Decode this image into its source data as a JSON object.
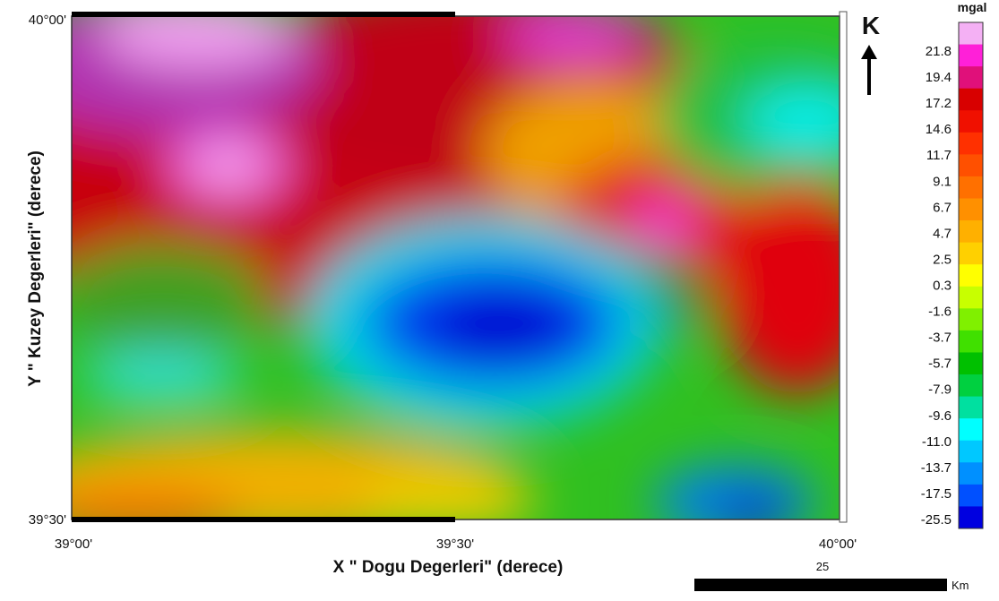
{
  "axes": {
    "y_ticks": [
      "40°00'",
      "39°30'"
    ],
    "x_ticks": [
      "39°00'",
      "39°30'",
      "40°00'"
    ],
    "x_label": "X \" Dogu Degerleri\" (derece)",
    "y_label": "Y \" Kuzey  Degerleri\" (derece)"
  },
  "north_arrow": {
    "label": "K"
  },
  "colorbar": {
    "unit": "mgal",
    "labels": [
      "21.8",
      "19.4",
      "17.2",
      "14.6",
      "11.7",
      "9.1",
      "6.7",
      "4.7",
      "2.5",
      "0.3",
      "-1.6",
      "-3.7",
      "-5.7",
      "-7.9",
      "-9.6",
      "-11.0",
      "-13.7",
      "-17.5",
      "-25.5"
    ]
  },
  "scale_bar": {
    "distance": "25",
    "unit": "Km"
  }
}
